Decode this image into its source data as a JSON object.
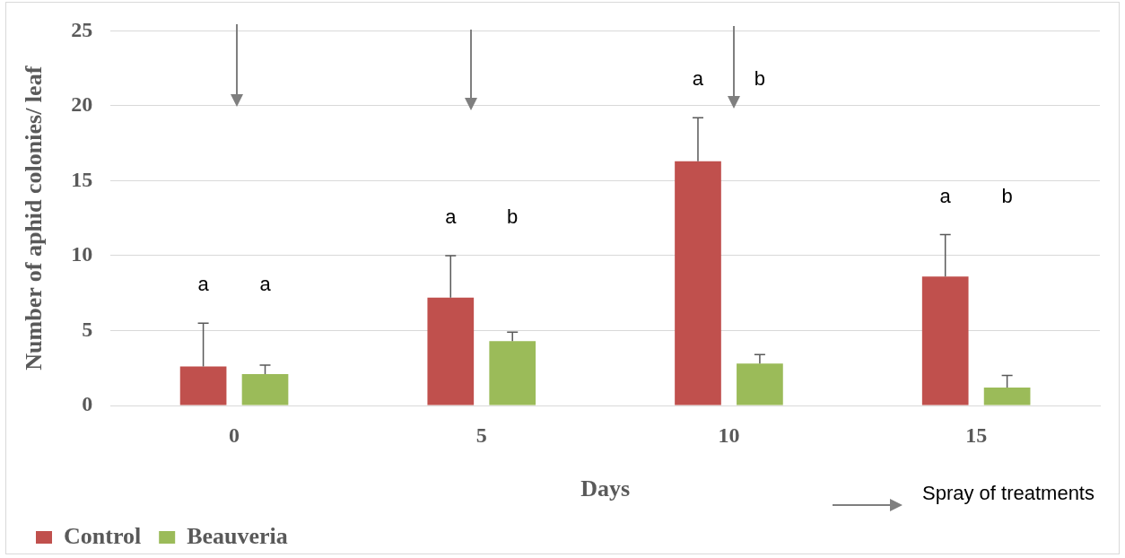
{
  "chart_data": {
    "type": "bar",
    "xlabel": "Days",
    "ylabel": "Number of aphid colonies/ leaf",
    "categories": [
      "0",
      "5",
      "10",
      "15"
    ],
    "series": [
      {
        "name": "Control",
        "color": "#c0504d",
        "values": [
          2.6,
          7.2,
          16.3,
          8.6
        ],
        "errors": [
          [
            2.6,
            5.5
          ],
          [
            7.2,
            10.0
          ],
          [
            16.3,
            19.2
          ],
          [
            8.6,
            11.4
          ]
        ]
      },
      {
        "name": "Beauveria",
        "color": "#9bbb59",
        "values": [
          2.1,
          4.3,
          2.8,
          1.2
        ],
        "errors": [
          [
            2.1,
            2.7
          ],
          [
            4.3,
            4.9
          ],
          [
            2.8,
            3.4
          ],
          [
            1.2,
            2.0
          ]
        ]
      }
    ],
    "ylim": [
      0,
      25
    ],
    "yticks": [
      0,
      5,
      10,
      15,
      20,
      25
    ],
    "grid": "y",
    "legend": "bottom left",
    "annotations": [
      "a",
      "a",
      "a",
      "b",
      "a",
      "b",
      "a",
      "b",
      "Spray of treatments"
    ]
  }
}
